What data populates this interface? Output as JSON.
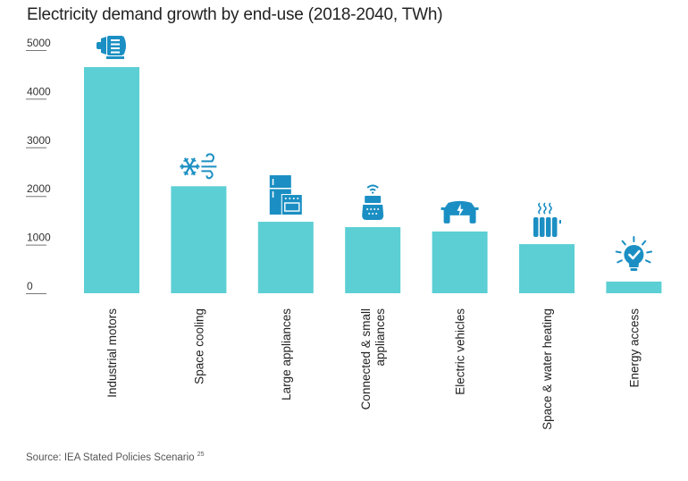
{
  "chart_data": {
    "type": "bar",
    "title": "Electricity demand growth by end-use (2018-2040, TWh)",
    "xlabel": "",
    "ylabel": "",
    "ylim": [
      0,
      5000
    ],
    "yticks": [
      0,
      1000,
      2000,
      3000,
      4000,
      5000
    ],
    "grid": false,
    "categories": [
      [
        "Industrial motors"
      ],
      [
        "Space cooling"
      ],
      [
        "Large appliances"
      ],
      [
        "Connected & small",
        "appliances"
      ],
      [
        "Electric vehicles"
      ],
      [
        "Space & water heating"
      ],
      [
        "Energy access"
      ]
    ],
    "category_names": [
      "Industrial motors",
      "Space cooling",
      "Large appliances",
      "Connected & small appliances",
      "Electric vehicles",
      "Space & water heating",
      "Energy access"
    ],
    "values": [
      4650,
      2200,
      1470,
      1360,
      1270,
      1010,
      240
    ],
    "icons": [
      "electric-motor-icon",
      "snowflake-wind-icon",
      "fridge-oven-icon",
      "smart-speaker-icon",
      "electric-car-icon",
      "radiator-icon",
      "lightbulb-check-icon"
    ],
    "colors": {
      "bar": "#5ccfd4",
      "icon": "#1b8fc3",
      "axis": "#777777"
    },
    "source": "Source: IEA Stated Policies Scenario",
    "source_ref": "25"
  }
}
